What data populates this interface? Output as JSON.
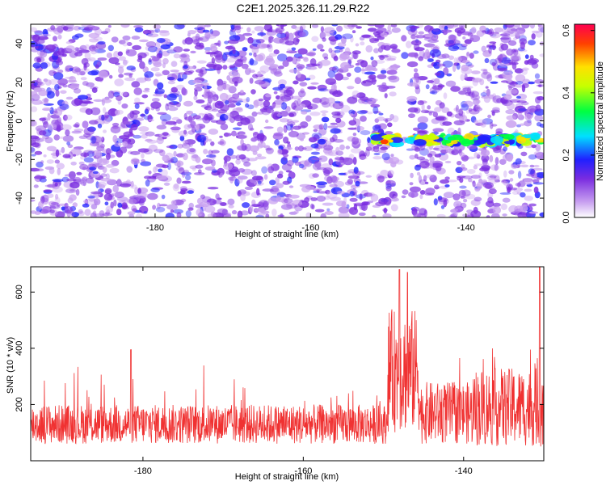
{
  "title": "C2E1.2025.326.11.29.R22",
  "colors": {
    "spectrogram_cmap": [
      "#ffffff",
      "#c8a0f0",
      "#7a2ce0",
      "#2020ff",
      "#00e0ff",
      "#00ff40",
      "#c8ff00",
      "#ffe000",
      "#ff4000",
      "#ff0050"
    ],
    "snr_line": "#f03232"
  },
  "chart_data": [
    {
      "type": "heatmap",
      "title": "C2E1.2025.326.11.29.R22",
      "xlabel": "Height of straight line (km)",
      "ylabel": "Frequency (Hz)",
      "xlim": [
        -196,
        -130
      ],
      "ylim": [
        -50,
        50
      ],
      "x_ticks": [
        -180,
        -160,
        -140
      ],
      "y_ticks": [
        -40,
        -20,
        0,
        20,
        40
      ],
      "colorbar": {
        "label": "Normalized spectral amplitude",
        "range": [
          0.0,
          0.62
        ],
        "ticks": [
          0.0,
          0.2,
          0.4,
          0.6
        ]
      },
      "features": [
        {
          "name": "signal band",
          "x_range": [
            -152,
            -130
          ],
          "freq_center": -10,
          "peak_amplitude": 0.55
        },
        {
          "name": "gap",
          "x_range": [
            -149,
            -147
          ]
        }
      ]
    },
    {
      "type": "line",
      "xlabel": "Height of straight line (km)",
      "ylabel": "SNR (10 * v/v)",
      "xlim": [
        -194,
        -130
      ],
      "ylim": [
        0,
        690
      ],
      "x_ticks": [
        -180,
        -160,
        -140
      ],
      "y_ticks": [
        200,
        400,
        600
      ],
      "baseline_mean": 130,
      "peaks": [
        {
          "x": -148,
          "y": 680
        },
        {
          "x": -147,
          "y": 670
        },
        {
          "x": -130.5,
          "y": 690
        },
        {
          "x": -181.5,
          "y": 395
        }
      ]
    }
  ]
}
